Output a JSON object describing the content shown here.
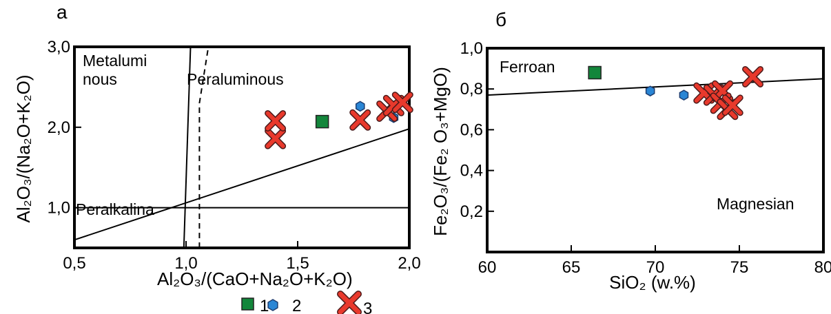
{
  "colors": {
    "square": "#13863b",
    "hexagon": "#2a86d5",
    "cross": "#e8392c",
    "cross_outline": "#4a1a1a"
  },
  "legend": [
    {
      "symbol": "square",
      "label": "1"
    },
    {
      "symbol": "hexagon",
      "label": "2"
    },
    {
      "symbol": "cross",
      "label": "3"
    }
  ],
  "chart_data": [
    {
      "type": "scatter",
      "panel_label": "а",
      "xlabel": "Al₂O₃/(CaO+Na₂O+K₂O)",
      "ylabel": "Al₂O₃/(Na₂O+K₂O)",
      "xlim": [
        0.5,
        2.0
      ],
      "ylim": [
        0.5,
        3.0
      ],
      "x_ticks": [
        "0,5",
        "1,0",
        "1,5",
        "2,0"
      ],
      "y_ticks": [
        "1,0",
        "2,0",
        "3,0"
      ],
      "field_labels": [
        "Metalumi",
        "nous",
        "Peraluminous",
        "Peralkalina"
      ],
      "series": [
        {
          "symbol": "square",
          "points": [
            [
              1.61,
              2.07
            ]
          ]
        },
        {
          "symbol": "hexagon",
          "points": [
            [
              1.78,
              2.26
            ],
            [
              1.93,
              2.12
            ]
          ]
        },
        {
          "symbol": "cross",
          "points": [
            [
              1.4,
              1.86
            ],
            [
              1.4,
              2.08
            ],
            [
              1.78,
              2.09
            ],
            [
              1.9,
              2.2
            ],
            [
              1.93,
              2.27
            ],
            [
              1.97,
              2.31
            ]
          ]
        }
      ],
      "lines": [
        {
          "style": "solid",
          "points": [
            [
              0.5,
              1.0
            ],
            [
              2.0,
              1.0
            ]
          ]
        },
        {
          "style": "solid",
          "points": [
            [
              0.99,
              0.5
            ],
            [
              1.02,
              3.0
            ]
          ]
        },
        {
          "style": "solid",
          "points": [
            [
              0.5,
              0.6
            ],
            [
              2.0,
              1.98
            ]
          ]
        },
        {
          "style": "dashed",
          "points": [
            [
              1.06,
              0.5
            ],
            [
              1.06,
              2.0
            ],
            [
              1.06,
              2.3
            ],
            [
              1.1,
              3.0
            ]
          ]
        }
      ]
    },
    {
      "type": "scatter",
      "panel_label": "б",
      "xlabel": "SiO₂ (w.%)",
      "ylabel": "Fe₂O₃/(Fe₂ O₃+MgO)",
      "xlim": [
        60,
        80
      ],
      "ylim": [
        0.0,
        1.0
      ],
      "x_ticks": [
        "60",
        "65",
        "70",
        "75",
        "80"
      ],
      "y_ticks": [
        "0,2",
        "0,4",
        "0,6",
        "0,8",
        "1,0"
      ],
      "field_labels": [
        "Ferroan",
        "Magnesian"
      ],
      "series": [
        {
          "symbol": "square",
          "points": [
            [
              66.4,
              0.88
            ]
          ]
        },
        {
          "symbol": "hexagon",
          "points": [
            [
              69.7,
              0.79
            ],
            [
              71.7,
              0.77
            ]
          ]
        },
        {
          "symbol": "cross",
          "points": [
            [
              72.9,
              0.78
            ],
            [
              73.5,
              0.77
            ],
            [
              74.0,
              0.79
            ],
            [
              73.9,
              0.73
            ],
            [
              74.3,
              0.7
            ],
            [
              74.6,
              0.72
            ],
            [
              75.8,
              0.86
            ]
          ]
        }
      ],
      "lines": [
        {
          "style": "solid",
          "points": [
            [
              60,
              0.77
            ],
            [
              80,
              0.85
            ]
          ]
        }
      ]
    }
  ]
}
